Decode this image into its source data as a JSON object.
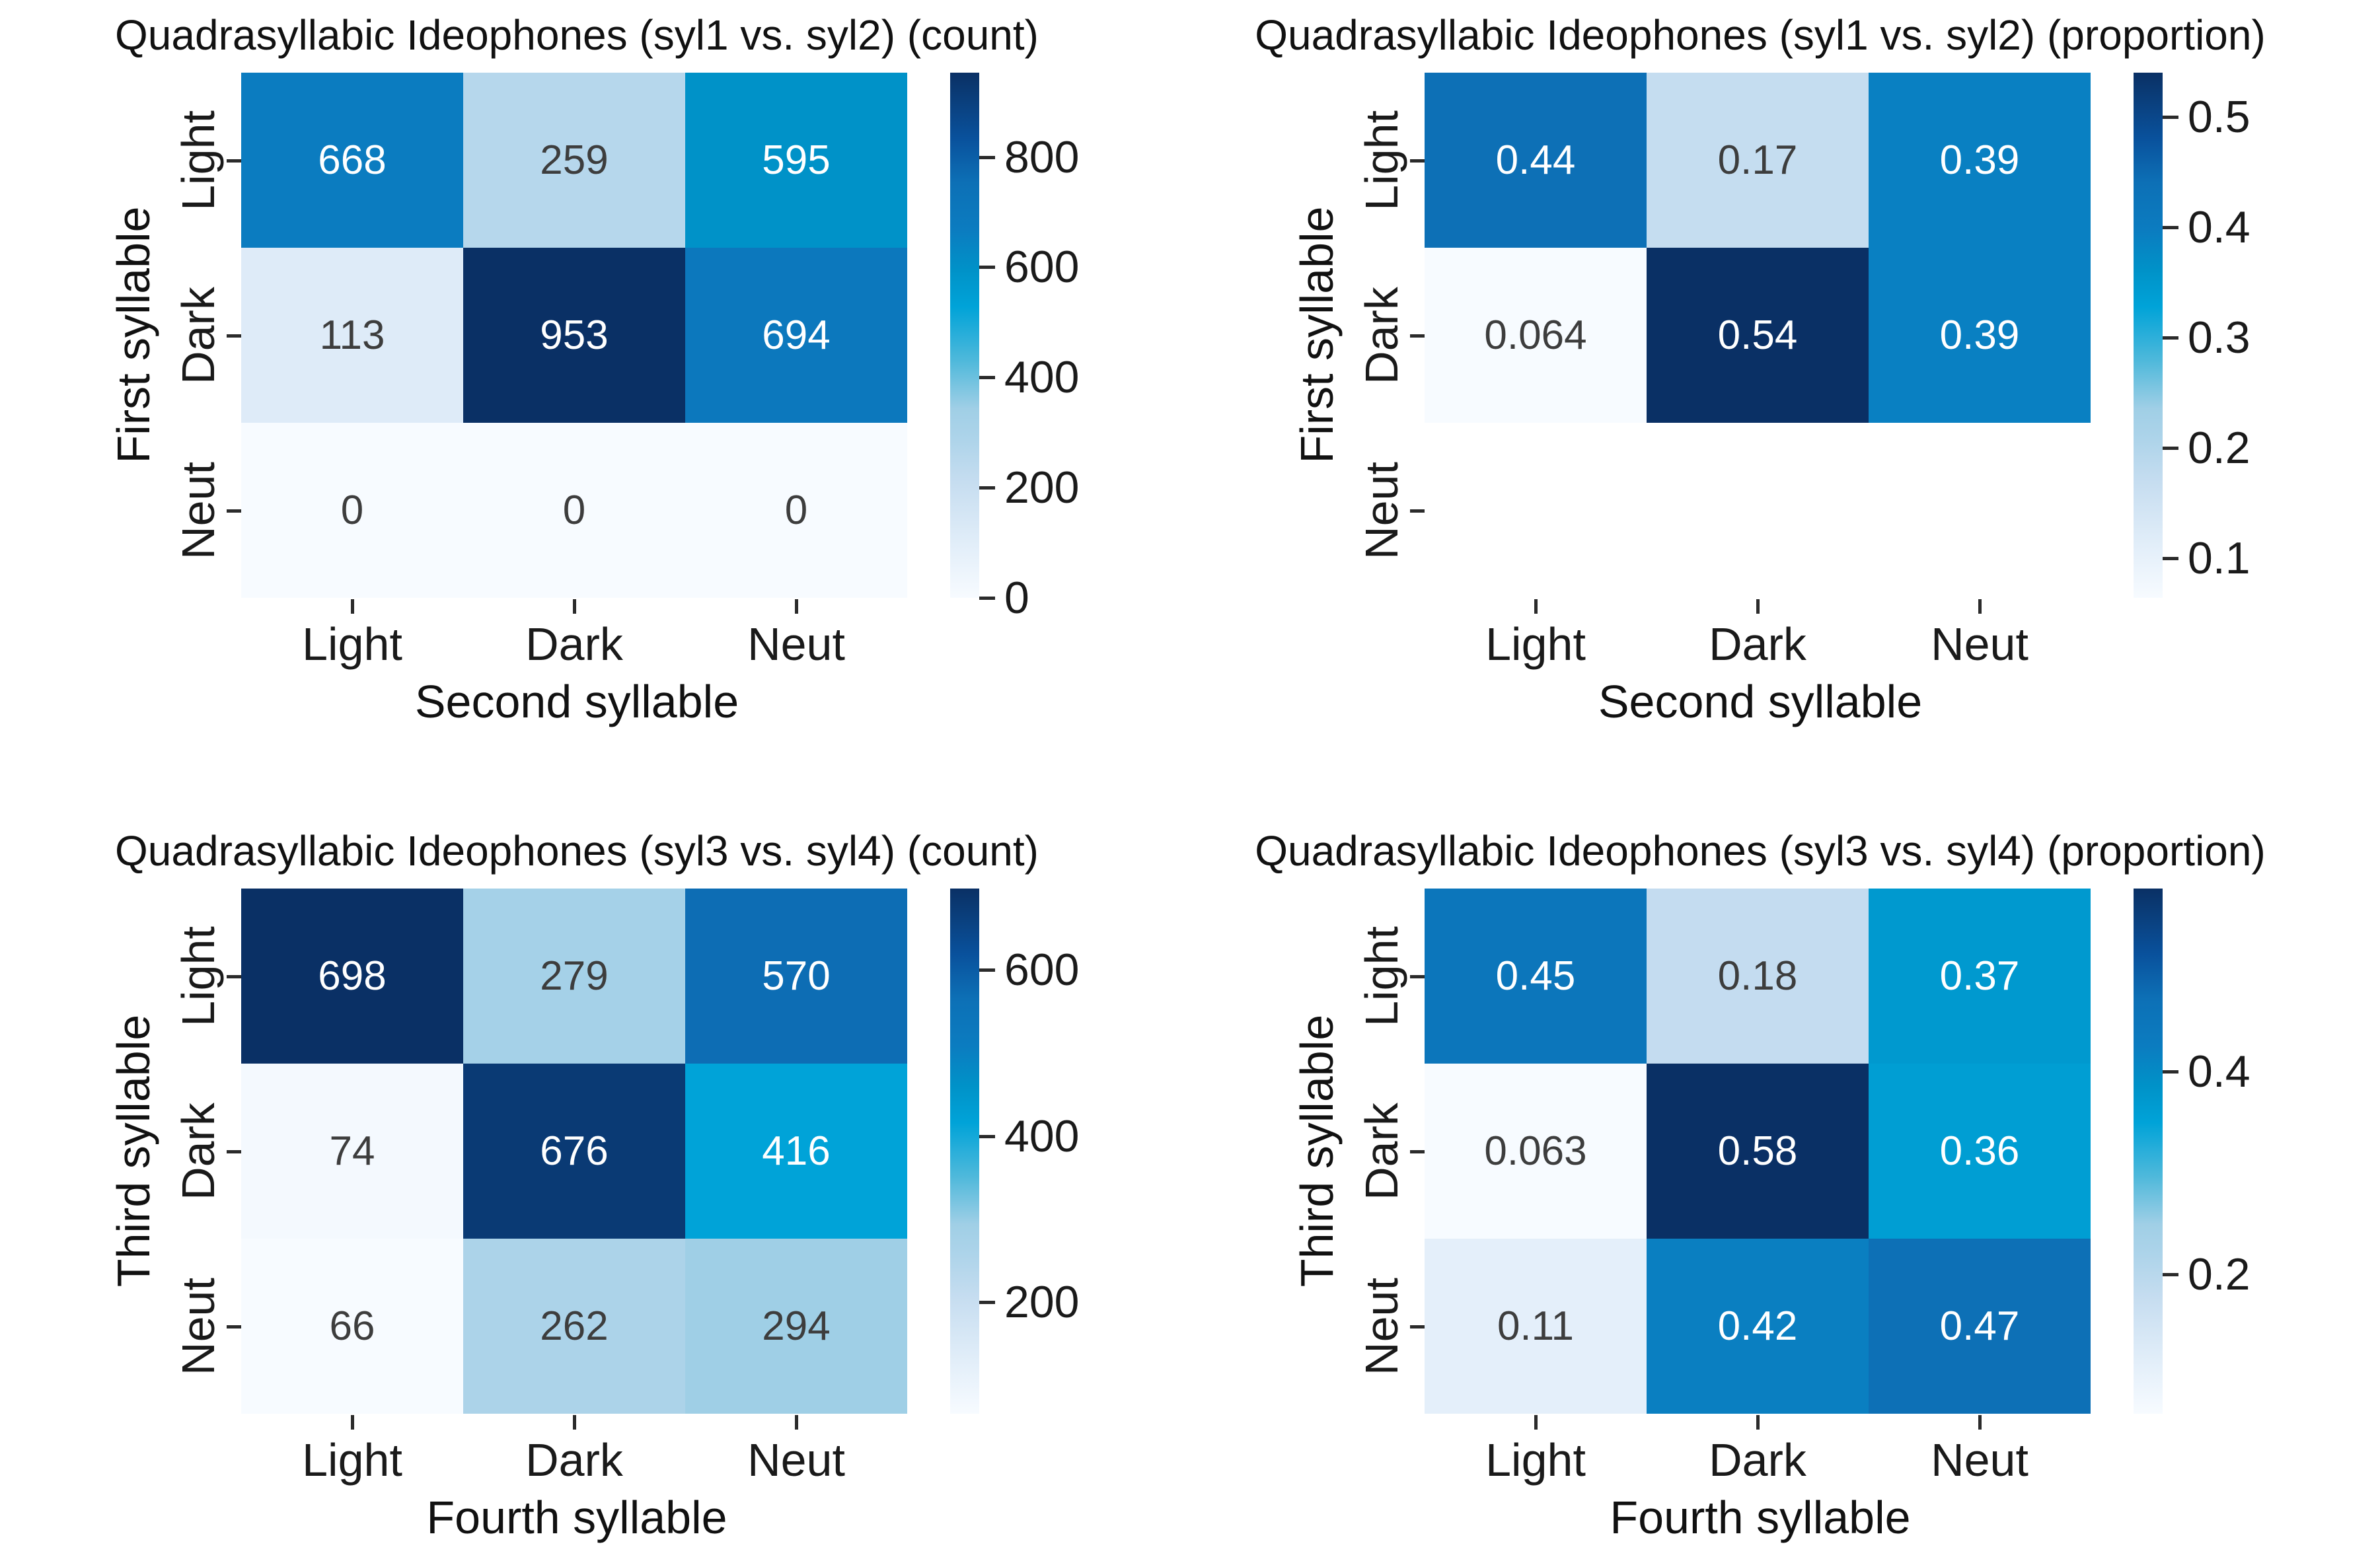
{
  "style": {
    "background": "#ffffff",
    "text_color": "#1a1a1a",
    "annotation_dark": "#3d3d3d",
    "annotation_light": "#ffffff",
    "colormap": {
      "name": "Blues",
      "stops": [
        {
          "t": 0.0,
          "color": "#f7fbff"
        },
        {
          "t": 0.1,
          "color": "#e2eef9"
        },
        {
          "t": 0.22,
          "color": "#c6ddf0"
        },
        {
          "t": 0.3,
          "color": "#aed4ea"
        },
        {
          "t": 0.36,
          "color": "#a0cfe6"
        },
        {
          "t": 0.45,
          "color": "#50b9db"
        },
        {
          "t": 0.554,
          "color": "#00a3d8"
        },
        {
          "t": 0.624,
          "color": "#0092c8"
        },
        {
          "t": 0.7,
          "color": "#0b7cc0"
        },
        {
          "t": 0.79,
          "color": "#0d70b6"
        },
        {
          "t": 0.875,
          "color": "#09519c"
        },
        {
          "t": 0.965,
          "color": "#0a3a74"
        },
        {
          "t": 1.0,
          "color": "#0a3065"
        }
      ]
    }
  },
  "chart_data": [
    {
      "type": "heatmap",
      "title": "Quadrasyllabic Ideophones (syl1 vs. syl2) (count)",
      "xlabel": "Second syllable",
      "ylabel": "First syllable",
      "x_categories": [
        "Light",
        "Dark",
        "Neut"
      ],
      "y_categories": [
        "Light",
        "Dark",
        "Neut"
      ],
      "values": [
        [
          668,
          259,
          595
        ],
        [
          113,
          953,
          694
        ],
        [
          0,
          0,
          0
        ]
      ],
      "annotations": [
        [
          "668",
          "259",
          "595"
        ],
        [
          "113",
          "953",
          "694"
        ],
        [
          "0",
          "0",
          "0"
        ]
      ],
      "vmin": 0,
      "vmax": 953,
      "legend_position": "right",
      "colorbar_ticks": [
        {
          "value": 0,
          "label": "0"
        },
        {
          "value": 200,
          "label": "200"
        },
        {
          "value": 400,
          "label": "400"
        },
        {
          "value": 600,
          "label": "600"
        },
        {
          "value": 800,
          "label": "800"
        }
      ]
    },
    {
      "type": "heatmap",
      "title": "Quadrasyllabic Ideophones (syl1 vs. syl2) (proportion)",
      "xlabel": "Second syllable",
      "ylabel": "First syllable",
      "x_categories": [
        "Light",
        "Dark",
        "Neut"
      ],
      "y_categories": [
        "Light",
        "Dark",
        "Neut"
      ],
      "values": [
        [
          0.44,
          0.17,
          0.39
        ],
        [
          0.064,
          0.54,
          0.39
        ],
        [
          null,
          null,
          null
        ]
      ],
      "annotations": [
        [
          "0.44",
          "0.17",
          "0.39"
        ],
        [
          "0.064",
          "0.54",
          "0.39"
        ],
        [
          "",
          "",
          ""
        ]
      ],
      "vmin": 0.064,
      "vmax": 0.54,
      "legend_position": "right",
      "colorbar_ticks": [
        {
          "value": 0.1,
          "label": "0.1"
        },
        {
          "value": 0.2,
          "label": "0.2"
        },
        {
          "value": 0.3,
          "label": "0.3"
        },
        {
          "value": 0.4,
          "label": "0.4"
        },
        {
          "value": 0.5,
          "label": "0.5"
        }
      ]
    },
    {
      "type": "heatmap",
      "title": "Quadrasyllabic Ideophones (syl3 vs. syl4) (count)",
      "xlabel": "Fourth syllable",
      "ylabel": "Third syllable",
      "x_categories": [
        "Light",
        "Dark",
        "Neut"
      ],
      "y_categories": [
        "Light",
        "Dark",
        "Neut"
      ],
      "values": [
        [
          698,
          279,
          570
        ],
        [
          74,
          676,
          416
        ],
        [
          66,
          262,
          294
        ]
      ],
      "annotations": [
        [
          "698",
          "279",
          "570"
        ],
        [
          "74",
          "676",
          "416"
        ],
        [
          "66",
          "262",
          "294"
        ]
      ],
      "vmin": 66,
      "vmax": 698,
      "legend_position": "right",
      "colorbar_ticks": [
        {
          "value": 200,
          "label": "200"
        },
        {
          "value": 400,
          "label": "400"
        },
        {
          "value": 600,
          "label": "600"
        }
      ]
    },
    {
      "type": "heatmap",
      "title": "Quadrasyllabic Ideophones (syl3 vs. syl4) (proportion)",
      "xlabel": "Fourth syllable",
      "ylabel": "Third syllable",
      "x_categories": [
        "Light",
        "Dark",
        "Neut"
      ],
      "y_categories": [
        "Light",
        "Dark",
        "Neut"
      ],
      "values": [
        [
          0.45,
          0.18,
          0.37
        ],
        [
          0.063,
          0.58,
          0.36
        ],
        [
          0.11,
          0.42,
          0.47
        ]
      ],
      "annotations": [
        [
          "0.45",
          "0.18",
          "0.37"
        ],
        [
          "0.063",
          "0.58",
          "0.36"
        ],
        [
          "0.11",
          "0.42",
          "0.47"
        ]
      ],
      "vmin": 0.063,
      "vmax": 0.58,
      "legend_position": "right",
      "colorbar_ticks": [
        {
          "value": 0.2,
          "label": "0.2"
        },
        {
          "value": 0.4,
          "label": "0.4"
        }
      ]
    }
  ]
}
